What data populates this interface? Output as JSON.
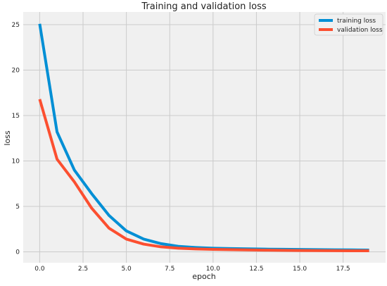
{
  "chart_data": {
    "type": "line",
    "title": "Training and validation loss",
    "xlabel": "epoch",
    "ylabel": "loss",
    "xlim": [
      -0.95,
      19.95
    ],
    "ylim": [
      -1.2,
      26.4
    ],
    "xticks": [
      0.0,
      2.5,
      5.0,
      7.5,
      10.0,
      12.5,
      15.0,
      17.5
    ],
    "xtick_labels": [
      "0.0",
      "2.5",
      "5.0",
      "7.5",
      "10.0",
      "12.5",
      "15.0",
      "17.5"
    ],
    "yticks": [
      0,
      5,
      10,
      15,
      20,
      25
    ],
    "ytick_labels": [
      "0",
      "5",
      "10",
      "15",
      "20",
      "25"
    ],
    "grid": true,
    "legend_position": "top-right",
    "x": [
      0,
      1,
      2,
      3,
      4,
      5,
      6,
      7,
      8,
      9,
      10,
      11,
      12,
      13,
      14,
      15,
      16,
      17,
      18,
      19
    ],
    "series": [
      {
        "name": "training loss",
        "color": "#008fd5",
        "values": [
          25.1,
          13.2,
          9.0,
          6.4,
          4.0,
          2.3,
          1.4,
          0.9,
          0.6,
          0.48,
          0.4,
          0.36,
          0.33,
          0.3,
          0.28,
          0.26,
          0.24,
          0.22,
          0.21,
          0.2
        ]
      },
      {
        "name": "validation loss",
        "color": "#fc4f30",
        "values": [
          16.8,
          10.2,
          7.7,
          4.8,
          2.6,
          1.4,
          0.85,
          0.55,
          0.4,
          0.32,
          0.27,
          0.24,
          0.21,
          0.19,
          0.17,
          0.15,
          0.14,
          0.13,
          0.12,
          0.12
        ]
      }
    ]
  },
  "colors": {
    "figure_bg": "#ffffff",
    "axes_bg": "#f0f0f0",
    "grid": "#cbcbcb",
    "text": "#222222"
  }
}
